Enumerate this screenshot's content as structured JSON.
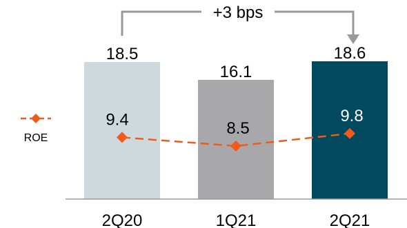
{
  "chart_data": {
    "type": "bar",
    "categories": [
      "2Q20",
      "1Q21",
      "2Q21"
    ],
    "values": [
      18.5,
      16.1,
      18.6
    ],
    "bar_colors": [
      "#cdd9dc",
      "#a8a8aa",
      "#00495e"
    ],
    "ylim": [
      0,
      22
    ],
    "line_series": {
      "name": "ROE",
      "values": [
        9.4,
        8.5,
        9.8
      ],
      "color": "#f05a1a",
      "style": "dashed",
      "marker": "diamond"
    },
    "annotation": {
      "text": "+3 bps",
      "from": "2Q20",
      "to": "2Q21",
      "color": "#999999"
    },
    "grid": false,
    "legend_position": "left"
  }
}
